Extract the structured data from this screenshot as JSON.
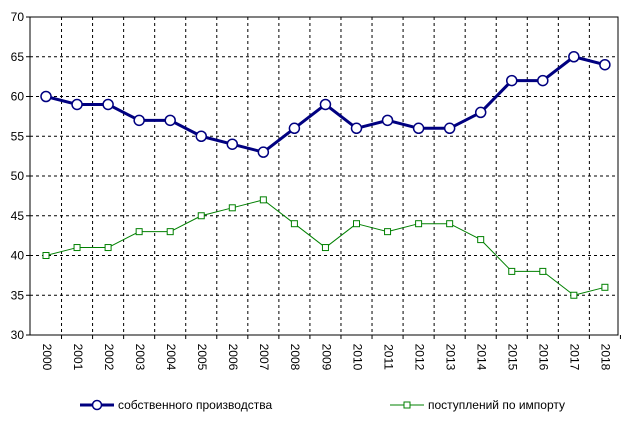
{
  "chart_data": {
    "type": "line",
    "title": "",
    "xlabel": "",
    "ylabel": "",
    "categories": [
      "2000",
      "2001",
      "2002",
      "2003",
      "2004",
      "2005",
      "2006",
      "2007",
      "2008",
      "2009",
      "2010",
      "2011",
      "2012",
      "2013",
      "2014",
      "2015",
      "2016",
      "2017",
      "2018"
    ],
    "ylim": [
      30,
      70
    ],
    "yticks": [
      30,
      35,
      40,
      45,
      50,
      55,
      60,
      65,
      70
    ],
    "grid": true,
    "legend": "bottom",
    "series": [
      {
        "name": "собственного производства",
        "color": "#000080",
        "marker": "circle",
        "values": [
          60,
          59,
          59,
          57,
          57,
          55,
          54,
          53,
          56,
          59,
          56,
          57,
          56,
          56,
          58,
          62,
          62,
          65,
          64
        ]
      },
      {
        "name": "поступлений по импорту",
        "color": "#008000",
        "marker": "square",
        "values": [
          40,
          41,
          41,
          43,
          43,
          45,
          46,
          47,
          44,
          41,
          44,
          43,
          44,
          44,
          42,
          38,
          38,
          35,
          36
        ]
      }
    ]
  }
}
